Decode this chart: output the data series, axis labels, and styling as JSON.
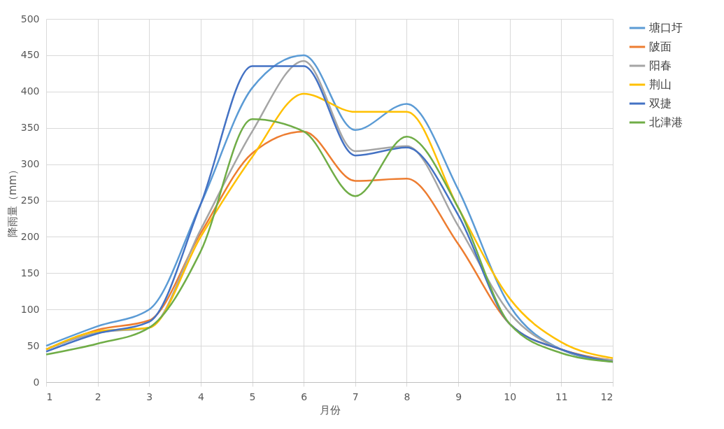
{
  "chart_data": {
    "type": "line",
    "xlabel": "月份",
    "ylabel": "降雨量（mm）",
    "x": [
      1,
      2,
      3,
      4,
      5,
      6,
      7,
      8,
      9,
      10,
      11,
      12
    ],
    "xlim": [
      1,
      12
    ],
    "xticks": [
      1,
      2,
      3,
      4,
      5,
      6,
      7,
      8,
      9,
      10,
      11,
      12
    ],
    "ylim": [
      0,
      500
    ],
    "yticks": [
      0,
      50,
      100,
      150,
      200,
      250,
      300,
      350,
      400,
      450,
      500
    ],
    "grid": true,
    "legend": "right",
    "marker": "none",
    "line_style": "solid",
    "series": [
      {
        "name": "塘口圩",
        "color": "#5b9bd5",
        "values": [
          50,
          77,
          100,
          245,
          405,
          450,
          347,
          383,
          265,
          105,
          45,
          28
        ]
      },
      {
        "name": "陂面",
        "color": "#ed7d31",
        "values": [
          45,
          72,
          85,
          205,
          315,
          345,
          277,
          280,
          190,
          80,
          45,
          30
        ]
      },
      {
        "name": "阳春",
        "color": "#a5a5a5",
        "values": [
          45,
          68,
          75,
          210,
          345,
          442,
          318,
          325,
          215,
          95,
          45,
          30
        ]
      },
      {
        "name": "荆山",
        "color": "#ffc000",
        "values": [
          45,
          70,
          75,
          200,
          310,
          397,
          372,
          372,
          240,
          115,
          55,
          33
        ]
      },
      {
        "name": "双捷",
        "color": "#4472c4",
        "values": [
          42,
          67,
          83,
          245,
          435,
          435,
          312,
          323,
          230,
          80,
          45,
          28
        ]
      },
      {
        "name": "北津港",
        "color": "#70ad47",
        "values": [
          38,
          53,
          75,
          180,
          362,
          345,
          256,
          338,
          240,
          80,
          40,
          28
        ]
      }
    ]
  }
}
